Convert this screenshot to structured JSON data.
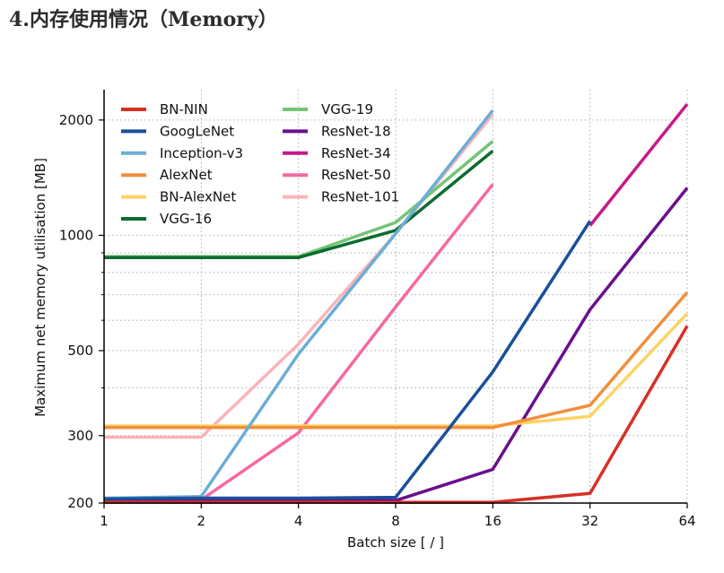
{
  "heading": "4.内存使用情况（Memory）",
  "chart_data": {
    "type": "line",
    "xlabel": "Batch size [ / ]",
    "ylabel": "Maximum net memory utilisation [MB]",
    "x": [
      1,
      2,
      4,
      8,
      16,
      32,
      64
    ],
    "x_scale": "log2",
    "y_scale": "log",
    "ylim": [
      200,
      2400
    ],
    "yticks": [
      200,
      300,
      500,
      1000,
      2000
    ],
    "grid": "dotted",
    "legend_position": "top-left",
    "series": [
      {
        "name": "BN-NIN",
        "color": "#d73027",
        "values": [
          201,
          201,
          201,
          201,
          201,
          212,
          580
        ]
      },
      {
        "name": "GoogLeNet",
        "color": "#1a4f9c",
        "values": [
          205,
          206,
          206,
          207,
          440,
          1090,
          null
        ]
      },
      {
        "name": "Inception-v3",
        "color": "#6baed6",
        "values": [
          206,
          208,
          490,
          1010,
          2120,
          null,
          null
        ]
      },
      {
        "name": "AlexNet",
        "color": "#f28e3c",
        "values": [
          315,
          315,
          315,
          315,
          315,
          360,
          710
        ]
      },
      {
        "name": "BN-AlexNet",
        "color": "#fdd365",
        "values": [
          318,
          318,
          318,
          318,
          318,
          337,
          625
        ]
      },
      {
        "name": "VGG-16",
        "color": "#0c6b2e",
        "values": [
          875,
          875,
          875,
          1030,
          1660,
          null,
          null
        ]
      },
      {
        "name": "VGG-19",
        "color": "#74c476",
        "values": [
          880,
          880,
          880,
          1080,
          1760,
          null,
          null
        ]
      },
      {
        "name": "ResNet-18",
        "color": "#6a0f8e",
        "values": [
          203,
          203,
          203,
          203,
          245,
          640,
          1330
        ]
      },
      {
        "name": "ResNet-34",
        "color": "#c51b8a",
        "values": [
          null,
          null,
          null,
          null,
          null,
          1060,
          2200
        ]
      },
      {
        "name": "ResNet-50",
        "color": "#f768a1",
        "values": [
          204,
          204,
          305,
          650,
          1360,
          null,
          null
        ]
      },
      {
        "name": "ResNet-101",
        "color": "#fbb4b9",
        "values": [
          297,
          297,
          520,
          1010,
          2070,
          null,
          null
        ]
      }
    ]
  }
}
